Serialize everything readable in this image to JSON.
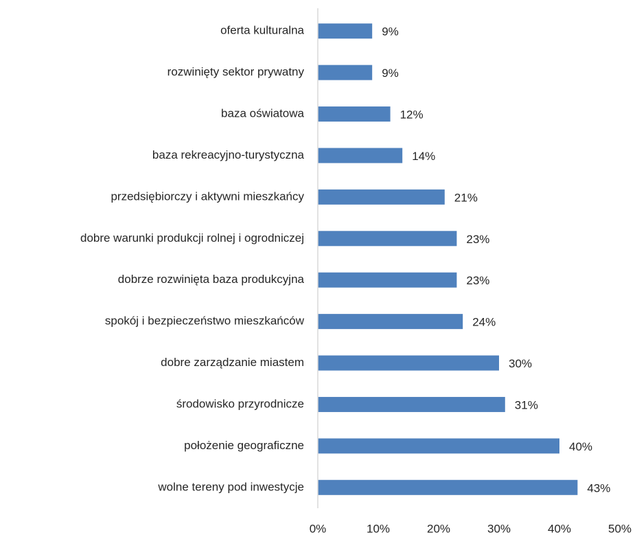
{
  "chart_data": {
    "type": "bar",
    "orientation": "horizontal",
    "categories": [
      "oferta kulturalna",
      "rozwinięty sektor prywatny",
      "baza oświatowa",
      "baza rekreacyjno-turystyczna",
      "przedsiębiorczy i aktywni mieszkańcy",
      "dobre warunki produkcji rolnej i ogrodniczej",
      "dobrze rozwinięta baza produkcyjna",
      "spokój i bezpieczeństwo mieszkańców",
      "dobre zarządzanie miastem",
      "środowisko przyrodnicze",
      "położenie geograficzne",
      "wolne tereny pod inwestycje"
    ],
    "values": [
      9,
      9,
      12,
      14,
      21,
      23,
      23,
      24,
      30,
      31,
      40,
      43
    ],
    "value_labels": [
      "9%",
      "9%",
      "12%",
      "14%",
      "21%",
      "23%",
      "23%",
      "24%",
      "30%",
      "31%",
      "40%",
      "43%"
    ],
    "color": "#4f81bd",
    "xlim": [
      0,
      50
    ],
    "xticks": [
      {
        "value": 0,
        "label": "0%"
      },
      {
        "value": 10,
        "label": "10%"
      },
      {
        "value": 20,
        "label": "20%"
      },
      {
        "value": 30,
        "label": "30%"
      },
      {
        "value": 40,
        "label": "40%"
      },
      {
        "value": 50,
        "label": "50%"
      }
    ],
    "grid": false
  }
}
